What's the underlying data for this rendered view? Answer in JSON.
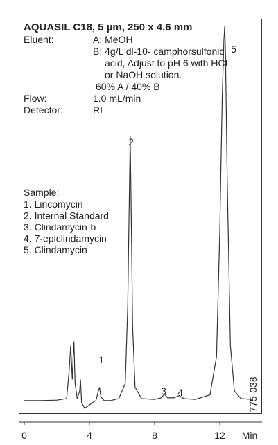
{
  "chart_data": {
    "type": "line",
    "title": "AQUASIL C18, 5 µm, 250 x 4.6 mm",
    "conditions": [
      {
        "label": "Eluent:",
        "lines": [
          "A: MeOH",
          "B: 4g/L dl-10- camphorsulfonic",
          "acid, Adjust to pH 6 with HCL",
          "or NaOH solution.",
          "60% A / 40% B"
        ]
      },
      {
        "label": "Flow:",
        "lines": [
          "1.0 mL/min"
        ]
      },
      {
        "label": "Detector:",
        "lines": [
          "RI"
        ]
      }
    ],
    "sample_title": "Sample:",
    "samples": [
      "1. Lincomycin",
      "2. Internal Standard",
      "3. Clindamycin-b",
      "4. 7-epiclindamycin",
      "5. Clindamycin"
    ],
    "peak_labels": [
      "1",
      "2",
      "3",
      "4",
      "5"
    ],
    "code": "775-038",
    "xlabel": "Min",
    "x": [
      0,
      1,
      2,
      2.6,
      2.75,
      2.85,
      2.95,
      3.0,
      3.05,
      3.12,
      3.25,
      3.4,
      3.45,
      3.52,
      3.7,
      3.9,
      4.2,
      4.4,
      4.55,
      4.62,
      4.7,
      4.9,
      5.3,
      5.8,
      6.2,
      6.35,
      6.45,
      6.5,
      6.55,
      6.65,
      6.8,
      7.2,
      8.0,
      8.4,
      8.6,
      8.8,
      9.2,
      9.5,
      9.8,
      10.5,
      11.4,
      11.8,
      12.0,
      12.15,
      12.25,
      12.3,
      12.35,
      12.45,
      12.65,
      12.9,
      13.3,
      14
    ],
    "series": [
      {
        "color": "#333333",
        "values": [
          0.5,
          0.5,
          0.6,
          1,
          8,
          15,
          6,
          12,
          16,
          5,
          1,
          3,
          6,
          0,
          -1.5,
          -1,
          0,
          0.5,
          3,
          4,
          1.5,
          0.5,
          0.5,
          1,
          5,
          25,
          55,
          70,
          55,
          20,
          4,
          1,
          0.8,
          1.2,
          2.2,
          1.2,
          1.2,
          1.8,
          1,
          0.8,
          2,
          12,
          45,
          80,
          95,
          99,
          92,
          60,
          15,
          3,
          1,
          0.8
        ]
      }
    ],
    "xlim": [
      0,
      14.5
    ],
    "xticks": [
      0,
      4,
      8,
      12
    ],
    "ylim": [
      -3,
      100
    ]
  }
}
